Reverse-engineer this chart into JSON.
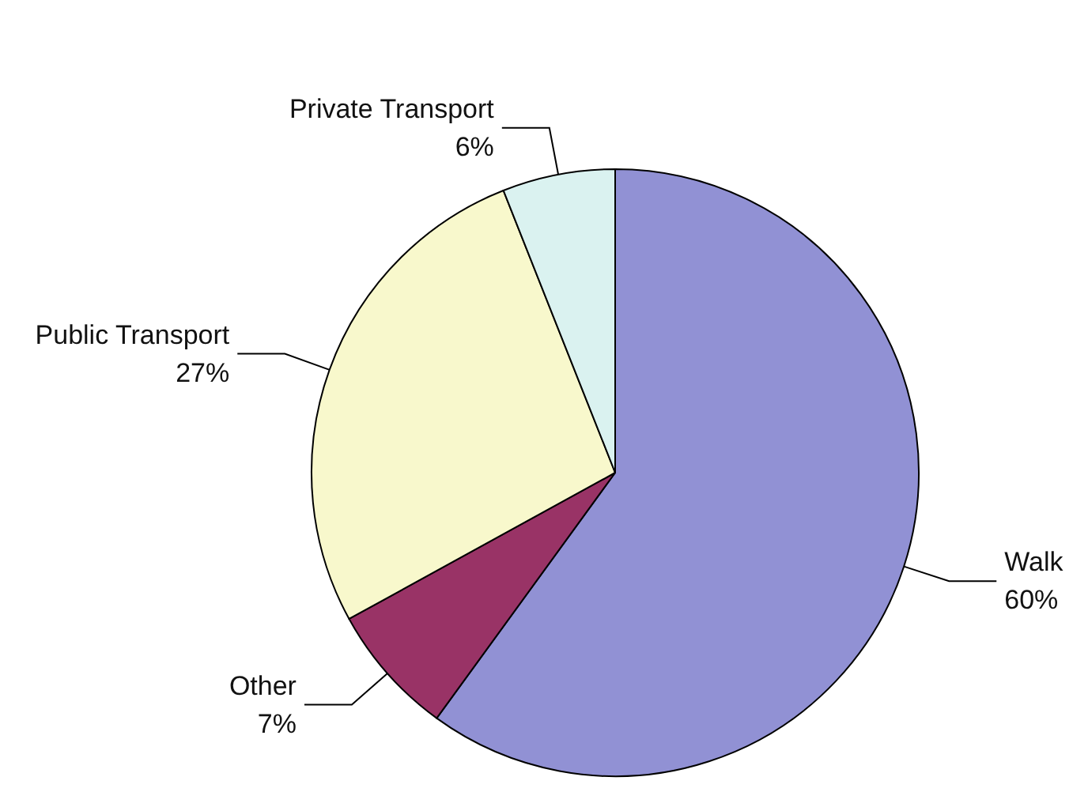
{
  "chart_data": {
    "type": "pie",
    "categories": [
      "Walk",
      "Other",
      "Public Transport",
      "Private Transport"
    ],
    "values": [
      60,
      7,
      27,
      6
    ],
    "value_labels": [
      "60%",
      "7%",
      "27%",
      "6%"
    ],
    "colors": [
      "#9191d4",
      "#993366",
      "#f8f8cc",
      "#daf2f0"
    ]
  }
}
